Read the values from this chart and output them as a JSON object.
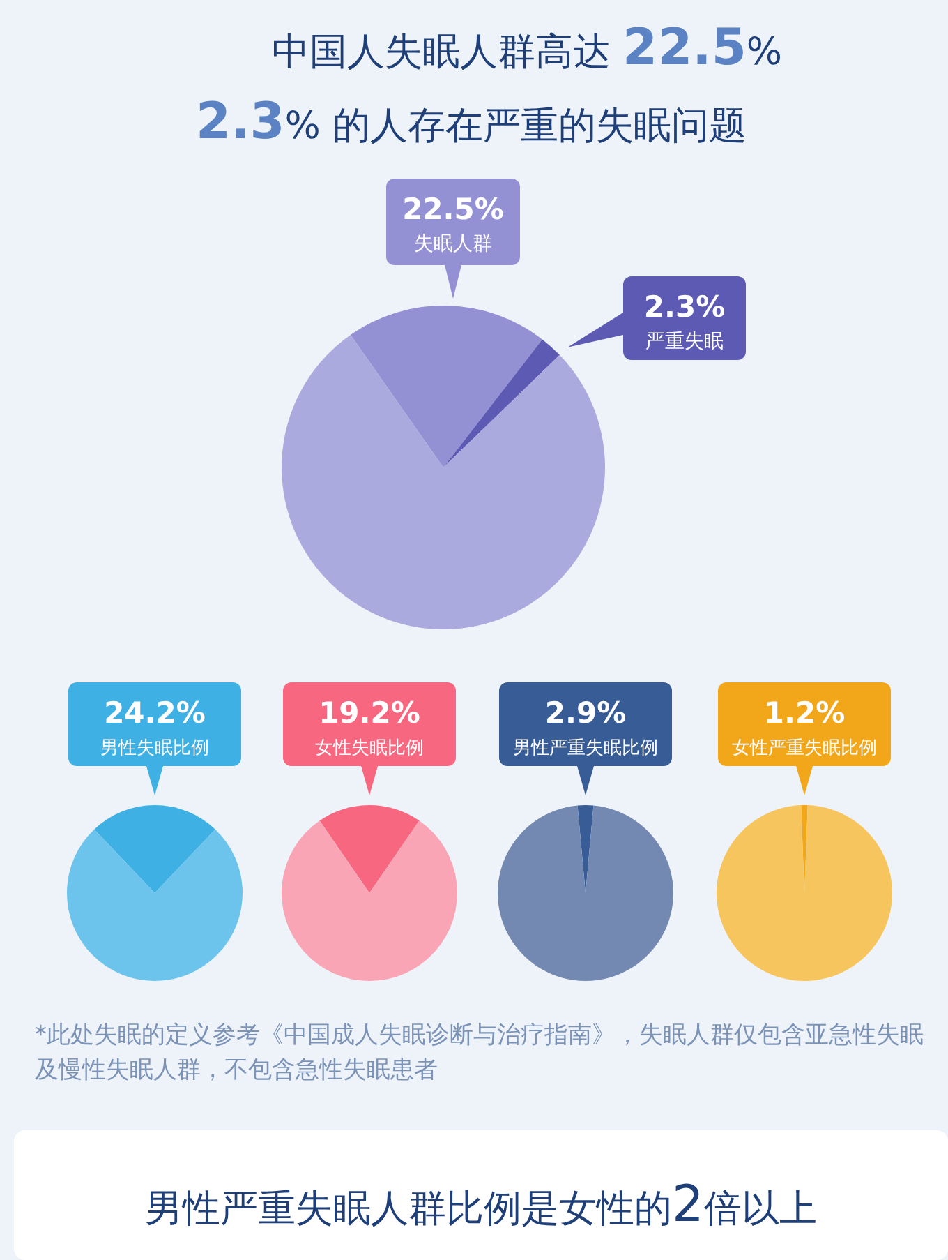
{
  "chart_data": [
    {
      "type": "pie",
      "title": "中国人失眠人群高达 22.5%",
      "subtitle": "2.3% 的人存在严重的失眠问题",
      "annotations": [
        "22.5%",
        "失眠人群"
      ],
      "categories": [
        null,
        "严重失眠",
        null
      ],
      "values": [
        20.2,
        2.3,
        77.5
      ],
      "value_labels": [
        null,
        "2.3%",
        null
      ],
      "colors": [
        "#9490d4",
        "#5d5ab3",
        "#abaade"
      ]
    },
    {
      "type": "pie",
      "categories": [
        "男性失眠比例",
        null
      ],
      "values": [
        24.2,
        75.8
      ],
      "value_labels": [
        "24.2%",
        null
      ],
      "colors": [
        "#3fb0e3",
        "#6cc4ec"
      ]
    },
    {
      "type": "pie",
      "categories": [
        "女性失眠比例",
        null
      ],
      "values": [
        19.2,
        80.8
      ],
      "value_labels": [
        "19.2%",
        null
      ],
      "colors": [
        "#f7677f",
        "#f9a5b5"
      ]
    },
    {
      "type": "pie",
      "categories": [
        "男性严重失眠比例",
        null
      ],
      "values": [
        2.9,
        97.1
      ],
      "value_labels": [
        "2.9%",
        null
      ],
      "colors": [
        "#385c96",
        "#7489b1"
      ]
    },
    {
      "type": "pie",
      "categories": [
        "女性严重失眠比例",
        null
      ],
      "values": [
        1.2,
        98.8
      ],
      "value_labels": [
        "1.2%",
        null
      ],
      "colors": [
        "#f2a71a",
        "#f6c55d"
      ]
    },
    {
      "type": "other",
      "title": "男性严重失眠人群比例是女性的2倍以上",
      "annotations": [
        "*此处失眠的定义参考《中国成人失眠诊断与治疗指南》，失眠人群仅包含亚急性失眠及慢性失眠人群，不包含急性失眠患者"
      ]
    }
  ]
}
